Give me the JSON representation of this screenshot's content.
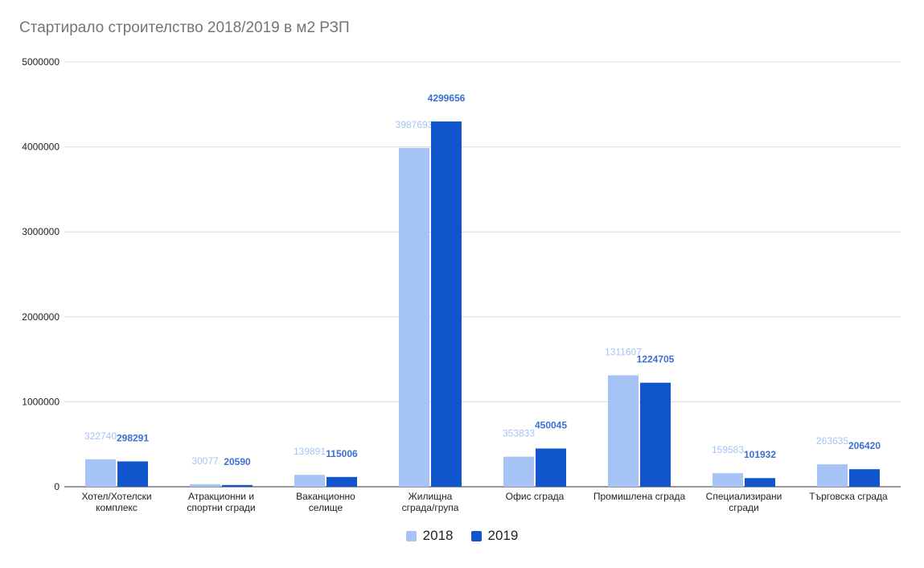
{
  "chart_data": {
    "type": "bar",
    "title": "Стартирало строителство 2018/2019 в м2 РЗП",
    "categories": [
      [
        "Хотел/Хотелски",
        "комплекс"
      ],
      [
        "Атракционни и",
        "спортни сгради"
      ],
      [
        "Ваканционно",
        "селище"
      ],
      [
        "Жилищна",
        "сграда/група"
      ],
      [
        "Офис сграда"
      ],
      [
        "Промишлена сграда"
      ],
      [
        "Специализирани",
        "сгради"
      ],
      [
        "Търговска сграда"
      ]
    ],
    "series": [
      {
        "name": "2018",
        "color": "#a5c3f4",
        "label_color": "#a5c3f4",
        "values": [
          322740,
          30077,
          139891,
          3987693,
          353833,
          1311607,
          159583,
          263635
        ]
      },
      {
        "name": "2019",
        "color": "#1155cc",
        "label_color": "#3b6fd0",
        "values": [
          298291,
          20590,
          115006,
          4299656,
          450045,
          1224705,
          101932,
          206420
        ]
      }
    ],
    "y_ticks": [
      "0",
      "1000000",
      "2000000",
      "3000000",
      "4000000",
      "5000000"
    ],
    "ylim": [
      0,
      5000000
    ],
    "grid": true,
    "legend_position": "bottom"
  }
}
